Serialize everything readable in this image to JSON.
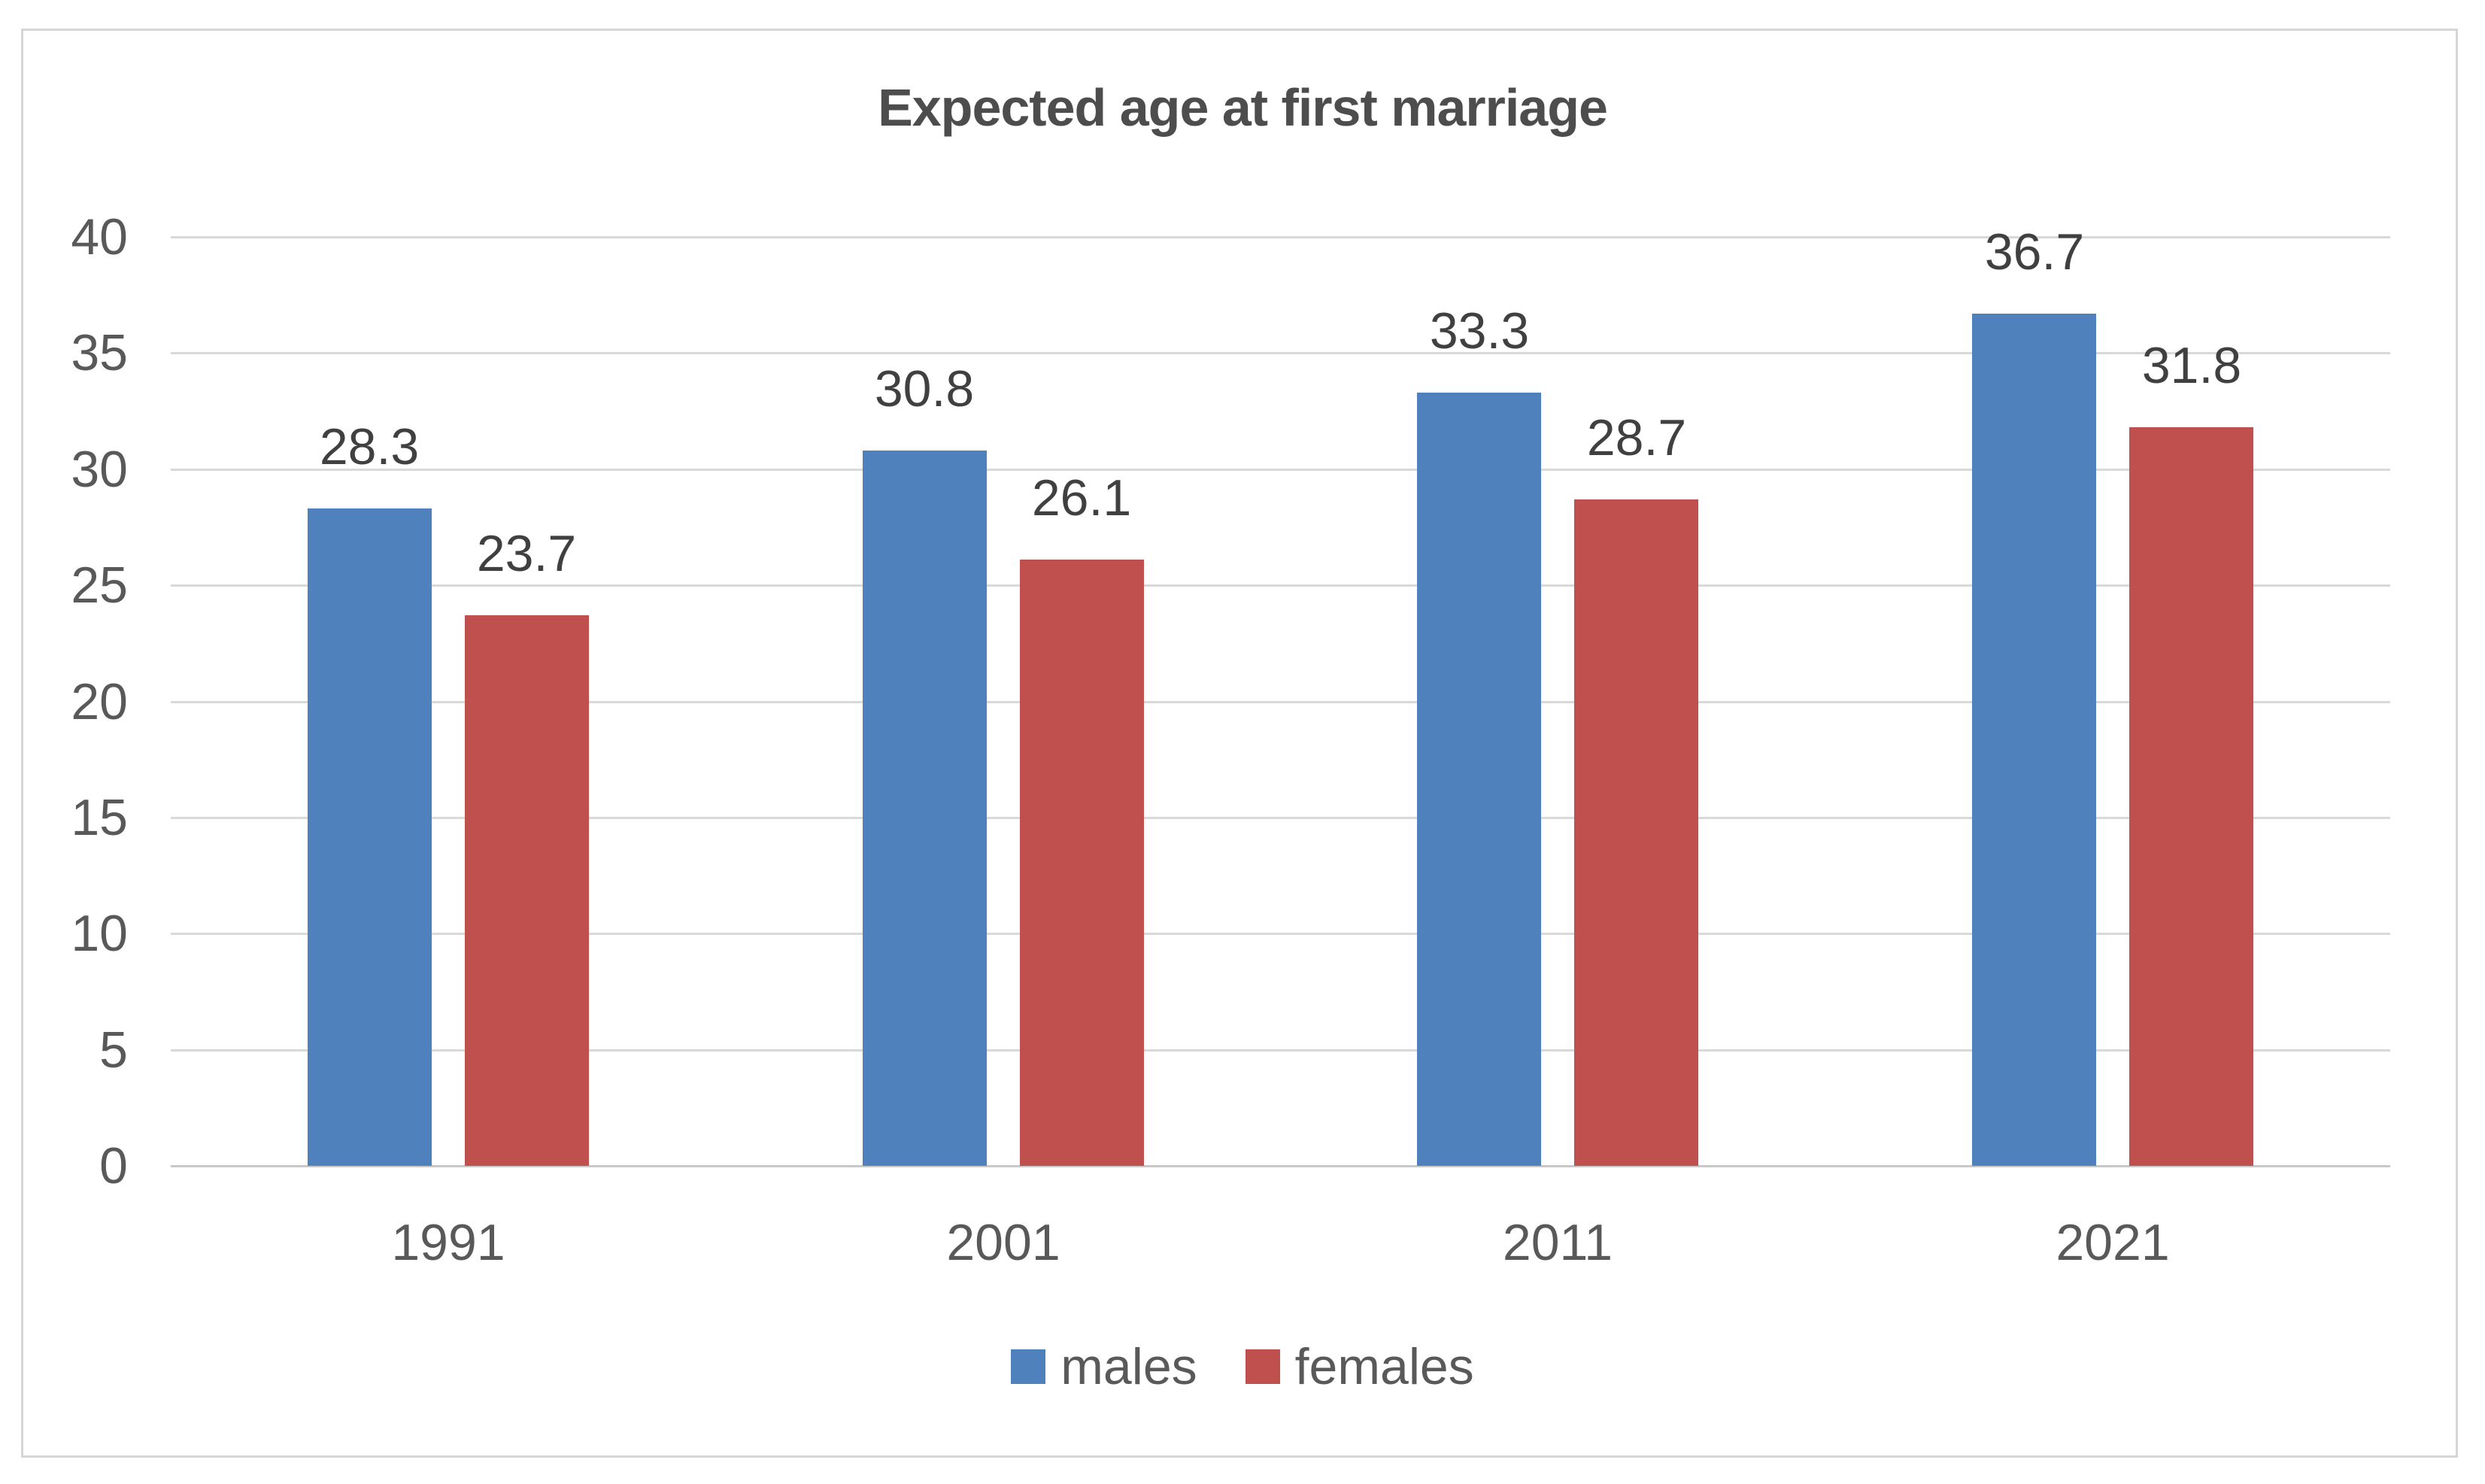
{
  "chart_data": {
    "type": "bar",
    "title": "Expected age at first marriage",
    "categories": [
      "1991",
      "2001",
      "2011",
      "2021"
    ],
    "series": [
      {
        "name": "males",
        "color": "#4F81BD",
        "values": [
          28.3,
          30.8,
          33.3,
          36.7
        ]
      },
      {
        "name": "females",
        "color": "#C0504D",
        "values": [
          23.7,
          26.1,
          28.7,
          31.8
        ]
      }
    ],
    "ylim": [
      0,
      40
    ],
    "ytick_step": 5,
    "yticks": [
      40,
      35,
      30,
      25,
      20,
      15,
      10,
      5,
      0
    ],
    "grid": "horizontal",
    "legend_position": "bottom",
    "data_labels": true
  },
  "palette": {
    "background": "#ffffff",
    "frame_border": "#d6d6d6",
    "gridline": "#d9d9d9",
    "axis_line": "#c8c8c8",
    "title_text": "#4d4d4d",
    "axis_text": "#595959",
    "data_label_text": "#404040"
  }
}
